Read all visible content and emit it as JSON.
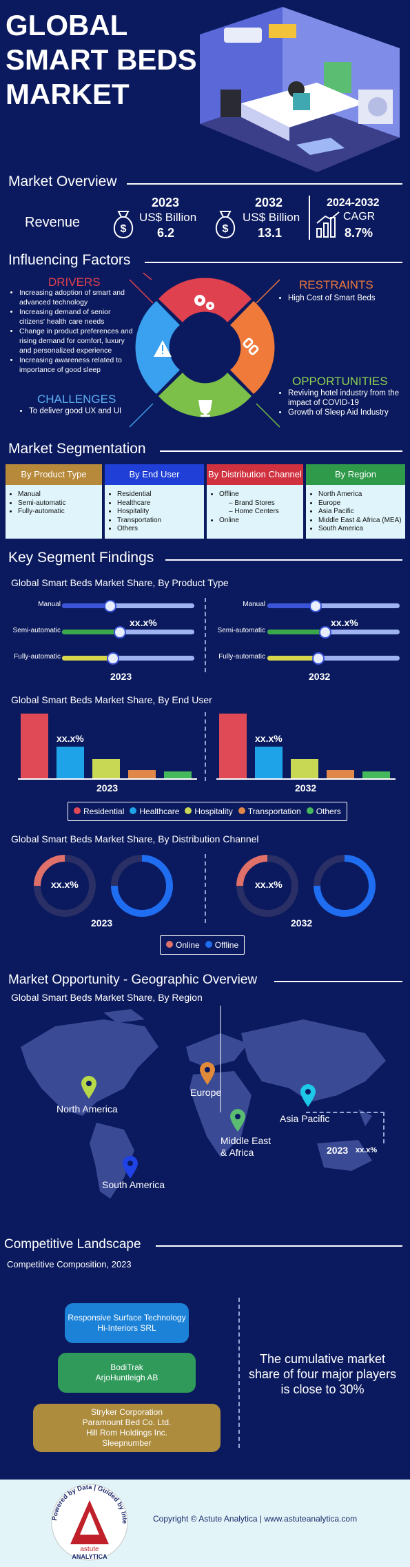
{
  "header": {
    "title_line1": "GLOBAL",
    "title_line2": "SMART BEDS",
    "title_line3": "MARKET"
  },
  "overview": {
    "title": "Market Overview",
    "revenue_label": "Revenue",
    "y2023": {
      "year": "2023",
      "unit": "US$ Billion",
      "value": "6.2"
    },
    "y2032": {
      "year": "2032",
      "unit": "US$ Billion",
      "value": "13.1"
    },
    "cagr": {
      "period": "2024-2032",
      "label": "CAGR",
      "value": "8.7%"
    }
  },
  "factors": {
    "title": "Influencing Factors",
    "drivers_title": "DRIVERS",
    "drivers": [
      "Increasing adoption of smart and advanced technology",
      "Increasing demand of senior citizens' health care needs",
      "Change in product preferences and rising demand for comfort, luxury and personalized experience",
      "Increasing awareness related to importance of good sleep"
    ],
    "restraints_title": "RESTRAINTS",
    "restraints": [
      "High Cost of Smart Beds"
    ],
    "challenges_title": "CHALLENGES",
    "challenges": [
      "To deliver good UX and UI"
    ],
    "opportunities_title": "OPPORTUNITIES",
    "opportunities": [
      "Reviving hotel industry from the impact of COVID-19",
      "Growth of Sleep Aid Industry"
    ],
    "colors": {
      "drivers": "#e0414f",
      "restraints": "#f07a3a",
      "challenges": "#3aa0f0",
      "opportunities": "#7cc04a"
    }
  },
  "segmentation": {
    "title": "Market Segmentation",
    "columns": [
      {
        "header": "By Product Type",
        "color": "#b7893a",
        "items": [
          "Manual",
          "Semi-automatic",
          "Fully-automatic"
        ]
      },
      {
        "header": "By End User",
        "color": "#1f3fd6",
        "items": [
          "Residential",
          "Healthcare",
          "Hospitality",
          "Transportation",
          "Others"
        ]
      },
      {
        "header": "By Distribution Channel",
        "color": "#d0313f",
        "items": [
          "Offline"
        ],
        "sub_items": [
          "Brand Stores",
          "Home Centers"
        ],
        "items_after": [
          "Online"
        ]
      },
      {
        "header": "By Region",
        "color": "#2f9a4a",
        "items": [
          "North America",
          "Europe",
          "Asia Pacific",
          "Middle East & Africa (MEA)",
          "South America"
        ]
      }
    ]
  },
  "findings": {
    "title": "Key Segment Findings",
    "product_type": {
      "subtitle": "Global Smart Beds Market Share, By Product Type",
      "labels": [
        "Manual",
        "Semi-automatic",
        "Fully-automatic"
      ],
      "value_label": "xx.x%",
      "year_left": "2023",
      "year_right": "2032"
    },
    "end_user": {
      "subtitle": "Global Smart Beds Market Share, By End User",
      "value_label": "xx.x%",
      "year_left": "2023",
      "year_right": "2032",
      "legend": [
        "Residential",
        "Healthcare",
        "Hospitality",
        "Transportation",
        "Others"
      ]
    },
    "distribution": {
      "subtitle": "Global Smart Beds Market Share, By Distribution Channel",
      "value_label": "xx.x%",
      "year_left": "2023",
      "year_right": "2032",
      "legend": [
        "Online",
        "Offline"
      ]
    }
  },
  "geo": {
    "title": "Market Opportunity - Geographic Overview",
    "subtitle": "Global Smart Beds Market Share, By Region",
    "regions": [
      "North America",
      "Europe",
      "Asia Pacific",
      "Middle East & Africa",
      "South America"
    ],
    "mea_line1": "Middle East",
    "mea_line2": "& Africa",
    "year": "2023",
    "value_label": "xx.x%"
  },
  "competitive": {
    "title": "Competitive Landscape",
    "subtitle": "Competitive Composition,  2023",
    "tier1": [
      "Responsive Surface Technology",
      "Hi-Interiors SRL"
    ],
    "tier2": [
      "BodiTrak",
      "ArjoHuntleigh AB"
    ],
    "tier3": [
      "Stryker Corporation",
      "Paramount Bed Co. Ltd.",
      "Hill Rom Holdings Inc.",
      "Sleepnumber"
    ],
    "statement": "The cumulative market share of four major players is close to 30%"
  },
  "footer": {
    "copyright": "Copyright © Astute Analytica  |  www.astuteanalytica.com",
    "logo_ring": "Powered by Data | Guided by Intelligence",
    "logo_name": "astute",
    "logo_name2": "ANALYTICA"
  }
}
